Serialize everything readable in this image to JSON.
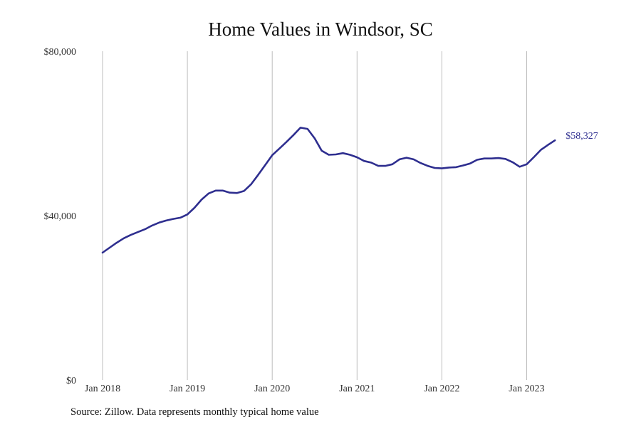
{
  "chart_data": {
    "type": "line",
    "title": "Home Values in Windsor, SC",
    "xlabel": "",
    "ylabel": "",
    "x_ticks": [
      "Jan 2018",
      "Jan 2019",
      "Jan 2020",
      "Jan 2021",
      "Jan 2022",
      "Jan 2023"
    ],
    "y_ticks": [
      "$0",
      "$40,000",
      "$80,000"
    ],
    "ylim": [
      0,
      80000
    ],
    "xlim": [
      "2018-01",
      "2023-12"
    ],
    "grid": "vertical",
    "line_color": "#2e2e8f",
    "end_label": "$58,327",
    "series": [
      {
        "x": [
          "2018-01",
          "2018-02",
          "2018-03",
          "2018-04",
          "2018-05",
          "2018-06",
          "2018-07",
          "2018-08",
          "2018-09",
          "2018-10",
          "2018-11",
          "2018-12",
          "2019-01",
          "2019-02",
          "2019-03",
          "2019-04",
          "2019-05",
          "2019-06",
          "2019-07",
          "2019-08",
          "2019-09",
          "2019-10",
          "2019-11",
          "2019-12",
          "2020-01",
          "2020-02",
          "2020-03",
          "2020-04",
          "2020-05",
          "2020-06",
          "2020-07",
          "2020-08",
          "2020-09",
          "2020-10",
          "2020-11",
          "2020-12",
          "2021-01",
          "2021-02",
          "2021-03",
          "2021-04",
          "2021-05",
          "2021-06",
          "2021-07",
          "2021-08",
          "2021-09",
          "2021-10",
          "2021-11",
          "2021-12",
          "2022-01",
          "2022-02",
          "2022-03",
          "2022-04",
          "2022-05",
          "2022-06",
          "2022-07",
          "2022-08",
          "2022-09",
          "2022-10",
          "2022-11",
          "2022-12",
          "2023-01",
          "2023-02",
          "2023-03",
          "2023-04",
          "2023-05"
        ],
        "values": [
          31000,
          32200,
          33400,
          34500,
          35300,
          36000,
          36700,
          37600,
          38300,
          38800,
          39200,
          39500,
          40300,
          41900,
          43900,
          45400,
          46100,
          46100,
          45600,
          45500,
          46000,
          47600,
          49900,
          52300,
          54700,
          56300,
          57900,
          59600,
          61400,
          61100,
          58800,
          55800,
          54800,
          54900,
          55200,
          54800,
          54200,
          53300,
          52900,
          52100,
          52100,
          52500,
          53700,
          54100,
          53700,
          52800,
          52100,
          51600,
          51500,
          51700,
          51800,
          52200,
          52700,
          53600,
          53900,
          53900,
          54000,
          53800,
          53000,
          51900,
          52500,
          54200,
          56000,
          57200,
          58327
        ]
      }
    ]
  },
  "source_text": "Source: Zillow. Data represents monthly typical home value"
}
